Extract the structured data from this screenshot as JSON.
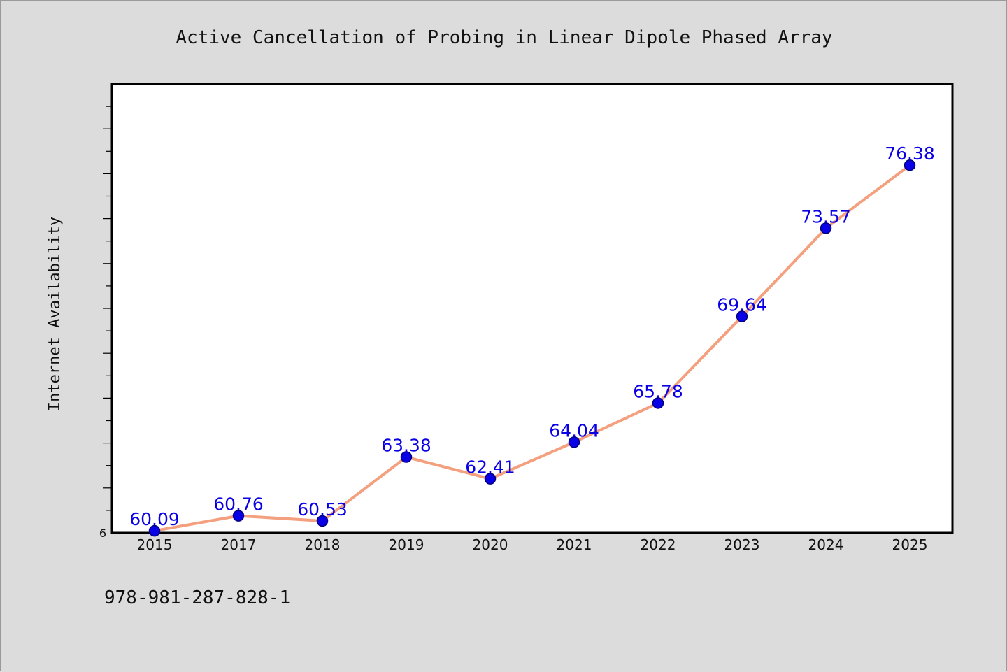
{
  "footer": {
    "isbn": "978-981-287-828-1"
  },
  "colors": {
    "background": "#dcdcdc",
    "plot_bg": "#ffffff",
    "line": "#f4a07e",
    "marker": "#0a00e6",
    "marker_edge": "#000080",
    "label": "#0a00e6"
  },
  "chart_data": {
    "type": "line",
    "title": "Active Cancellation of Probing in Linear Dipole Phased Array",
    "xlabel": "",
    "ylabel": "Internet Availability",
    "categories": [
      "2015",
      "2017",
      "2018",
      "2019",
      "2020",
      "2021",
      "2022",
      "2023",
      "2024",
      "2025"
    ],
    "series": [
      {
        "values": [
          60.09,
          60.76,
          60.53,
          63.38,
          62.41,
          64.04,
          65.78,
          69.64,
          73.57,
          76.38
        ],
        "labels": [
          "60.09",
          "60.76",
          "60.53",
          "63.38",
          "62.41",
          "64.04",
          "65.78",
          "69.64",
          "73.57",
          "76.38"
        ]
      }
    ],
    "ylim": [
      60,
      80
    ],
    "y_tick_labels": [
      "6"
    ],
    "grid": false,
    "legend": "none"
  }
}
